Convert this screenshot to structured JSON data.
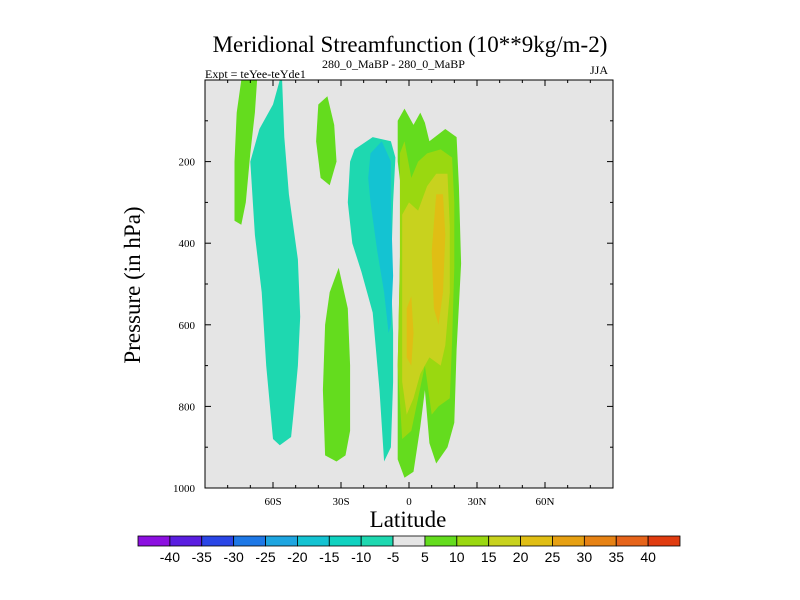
{
  "chart_data": {
    "type": "contour",
    "title": "Meridional Streamfunction (10**9kg/m-2)",
    "expt_label": "Expt = teYee-teYde1",
    "experiment_tag": "280_0_MaBP - 280_0_MaBP",
    "season": "JJA",
    "xlabel": "Latitude",
    "ylabel": "Pressure (in hPa)",
    "xlim": [
      -90,
      90
    ],
    "ylim": [
      1000,
      0
    ],
    "x_ticks": [
      {
        "value": -60,
        "label": "60S"
      },
      {
        "value": -30,
        "label": "30S"
      },
      {
        "value": 0,
        "label": "0"
      },
      {
        "value": 30,
        "label": "30N"
      },
      {
        "value": 60,
        "label": "60N"
      }
    ],
    "y_ticks": [
      {
        "value": 200,
        "label": "200"
      },
      {
        "value": 400,
        "label": "400"
      },
      {
        "value": 600,
        "label": "600"
      },
      {
        "value": 800,
        "label": "800"
      },
      {
        "value": 1000,
        "label": "1000"
      }
    ],
    "background_color": "#e5e5e5",
    "colorbar": {
      "levels": [
        -40,
        -35,
        -30,
        -25,
        -20,
        -15,
        -10,
        -5,
        5,
        10,
        15,
        20,
        25,
        30,
        35,
        40
      ],
      "colors": [
        "#8c10e0",
        "#5a1ee0",
        "#2a46e6",
        "#1e78e6",
        "#1ea5e0",
        "#14c3d2",
        "#10d2c0",
        "#1ed8b0",
        "#e5e5e5",
        "#64dc1e",
        "#9ad810",
        "#c8d21e",
        "#e0be14",
        "#e6a012",
        "#e68214",
        "#e6641a",
        "#e03c10"
      ]
    },
    "regions": [
      {
        "name": "sh-upper-positive-strip",
        "color": "#64dc1e",
        "points": [
          [
            -74,
            0
          ],
          [
            -67,
            0
          ],
          [
            -68,
            80
          ],
          [
            -70,
            180
          ],
          [
            -72,
            300
          ],
          [
            -74,
            355
          ],
          [
            -77,
            345
          ],
          [
            -77,
            200
          ],
          [
            -76,
            80
          ]
        ]
      },
      {
        "name": "sh-negative-cell",
        "color": "#1ed8b0",
        "points": [
          [
            -57,
            0
          ],
          [
            -56,
            0
          ],
          [
            -55,
            140
          ],
          [
            -53,
            280
          ],
          [
            -49,
            440
          ],
          [
            -48,
            580
          ],
          [
            -49,
            700
          ],
          [
            -51,
            820
          ],
          [
            -52,
            875
          ],
          [
            -57,
            895
          ],
          [
            -60,
            880
          ],
          [
            -63,
            700
          ],
          [
            -65,
            520
          ],
          [
            -68,
            380
          ],
          [
            -70,
            200
          ],
          [
            -66,
            120
          ],
          [
            -60,
            60
          ]
        ]
      },
      {
        "name": "upper-positive-blob",
        "color": "#64dc1e",
        "points": [
          [
            -40,
            60
          ],
          [
            -36,
            40
          ],
          [
            -33,
            110
          ],
          [
            -32,
            200
          ],
          [
            -35,
            258
          ],
          [
            -39,
            240
          ],
          [
            -41,
            150
          ]
        ]
      },
      {
        "name": "lower-positive-blob",
        "color": "#64dc1e",
        "points": [
          [
            -35,
            520
          ],
          [
            -31,
            460
          ],
          [
            -27,
            560
          ],
          [
            -26,
            700
          ],
          [
            -26,
            860
          ],
          [
            -28,
            920
          ],
          [
            -32,
            935
          ],
          [
            -37,
            920
          ],
          [
            -38,
            760
          ],
          [
            -37,
            600
          ]
        ]
      },
      {
        "name": "tropical-negative-cell",
        "color": "#1ed8b0",
        "points": [
          [
            -24,
            170
          ],
          [
            -16,
            140
          ],
          [
            -8,
            150
          ],
          [
            -6,
            190
          ],
          [
            -7,
            300
          ],
          [
            -8,
            480
          ],
          [
            -7,
            620
          ],
          [
            -7,
            740
          ],
          [
            -8,
            900
          ],
          [
            -11,
            935
          ],
          [
            -13,
            760
          ],
          [
            -16,
            570
          ],
          [
            -21,
            470
          ],
          [
            -25,
            400
          ],
          [
            -27,
            300
          ],
          [
            -26,
            200
          ]
        ]
      },
      {
        "name": "tropical-negative-core",
        "color": "#14c3d2",
        "points": [
          [
            -17,
            180
          ],
          [
            -12,
            150
          ],
          [
            -8,
            200
          ],
          [
            -8,
            300
          ],
          [
            -7,
            480
          ],
          [
            -8,
            600
          ],
          [
            -9,
            620
          ],
          [
            -11,
            520
          ],
          [
            -14,
            420
          ],
          [
            -17,
            300
          ],
          [
            -18,
            240
          ]
        ]
      },
      {
        "name": "hadley-positive-main",
        "color": "#64dc1e",
        "points": [
          [
            -5,
            100
          ],
          [
            -2,
            70
          ],
          [
            2,
            110
          ],
          [
            5,
            80
          ],
          [
            7,
            105
          ],
          [
            9,
            150
          ],
          [
            16,
            120
          ],
          [
            21,
            140
          ],
          [
            22,
            260
          ],
          [
            23,
            450
          ],
          [
            21,
            660
          ],
          [
            20,
            840
          ],
          [
            17,
            900
          ],
          [
            12,
            940
          ],
          [
            9,
            890
          ],
          [
            7,
            760
          ],
          [
            5,
            850
          ],
          [
            2,
            960
          ],
          [
            -2,
            975
          ],
          [
            -5,
            930
          ],
          [
            -5,
            700
          ],
          [
            -4,
            440
          ],
          [
            -3,
            290
          ],
          [
            -5,
            200
          ]
        ]
      },
      {
        "name": "hadley-positive-15",
        "color": "#9ad810",
        "points": [
          [
            -4,
            180
          ],
          [
            -2,
            150
          ],
          [
            1,
            240
          ],
          [
            4,
            200
          ],
          [
            8,
            180
          ],
          [
            14,
            170
          ],
          [
            19,
            190
          ],
          [
            20,
            300
          ],
          [
            20,
            460
          ],
          [
            19,
            640
          ],
          [
            18,
            780
          ],
          [
            13,
            800
          ],
          [
            10,
            820
          ],
          [
            7,
            700
          ],
          [
            4,
            780
          ],
          [
            1,
            860
          ],
          [
            -3,
            880
          ],
          [
            -5,
            700
          ],
          [
            -4,
            450
          ]
        ]
      },
      {
        "name": "hadley-positive-20",
        "color": "#c8d21e",
        "points": [
          [
            -3,
            330
          ],
          [
            0,
            300
          ],
          [
            4,
            320
          ],
          [
            8,
            260
          ],
          [
            12,
            230
          ],
          [
            17,
            230
          ],
          [
            18,
            360
          ],
          [
            18,
            520
          ],
          [
            16,
            650
          ],
          [
            14,
            700
          ],
          [
            9,
            680
          ],
          [
            5,
            720
          ],
          [
            2,
            780
          ],
          [
            -1,
            820
          ],
          [
            -3,
            740
          ],
          [
            -3,
            500
          ]
        ]
      },
      {
        "name": "hadley-positive-25-right",
        "color": "#e0be14",
        "points": [
          [
            12,
            280
          ],
          [
            15,
            280
          ],
          [
            16,
            380
          ],
          [
            15,
            520
          ],
          [
            13,
            600
          ],
          [
            11,
            560
          ],
          [
            10,
            420
          ]
        ]
      },
      {
        "name": "hadley-positive-25-left",
        "color": "#e0be14",
        "points": [
          [
            -1,
            560
          ],
          [
            1,
            530
          ],
          [
            2,
            620
          ],
          [
            1,
            700
          ],
          [
            -1,
            680
          ]
        ]
      }
    ]
  }
}
